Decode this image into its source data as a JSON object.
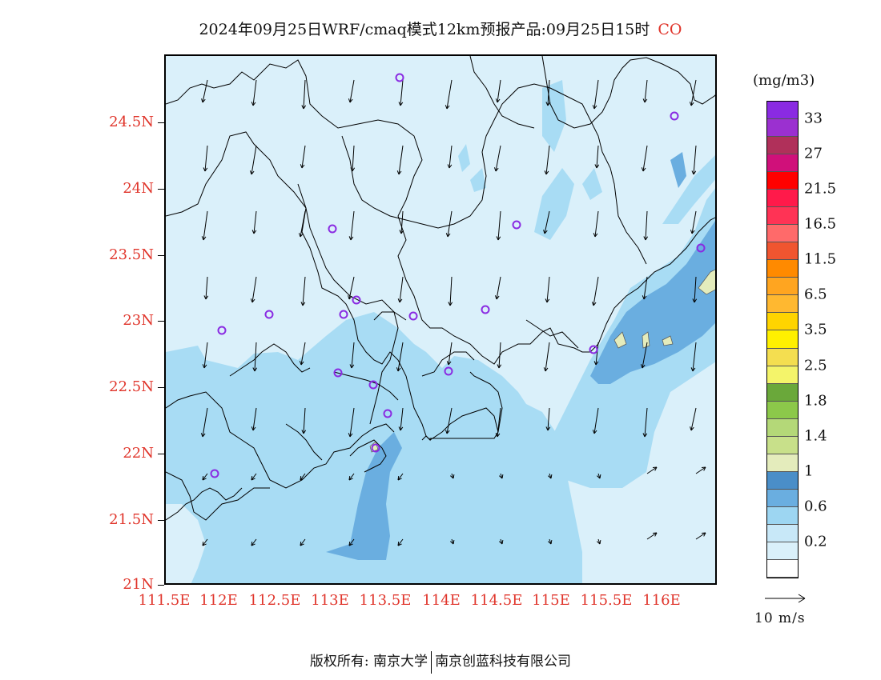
{
  "title": {
    "text": "2024年09月25日WRF/cmaq模式12km预报产品:09月25日15时",
    "species": "CO"
  },
  "map": {
    "y_axis_labels": [
      "24.5N",
      "24N",
      "23.5N",
      "23N",
      "22.5N",
      "22N",
      "21.5N",
      "21N"
    ],
    "x_axis_labels": [
      "111.5E",
      "112E",
      "112.5E",
      "113E",
      "113.5E",
      "114E",
      "114.5E",
      "115E",
      "115.5E",
      "116E"
    ],
    "background_color": "#daf0fa"
  },
  "legend": {
    "unit": "(mg/m3)",
    "labels": [
      "33",
      "27",
      "21.5",
      "16.5",
      "11.5",
      "6.5",
      "3.5",
      "2.5",
      "1.8",
      "1.4",
      "1",
      "0.6",
      "0.2"
    ],
    "colors": [
      "#8a2be2",
      "#9b30d0",
      "#b0305a",
      "#d0107a",
      "#ff0000",
      "#ff1a4a",
      "#ff3355",
      "#ff6a6a",
      "#f05530",
      "#ff8a00",
      "#ffa520",
      "#ffb830",
      "#ffd400",
      "#fff000",
      "#f4de50",
      "#f4f46a",
      "#6aa83a",
      "#8cc84a",
      "#b4d878",
      "#c8e08a",
      "#e4ecbc",
      "#4a8ec8",
      "#6aaee0",
      "#9dd6f2",
      "#c8e8f8",
      "#daf0fa",
      "#ffffff"
    ]
  },
  "reference_vector": {
    "label": "10 m/s"
  },
  "footer": {
    "left": "版权所有: 南京大学",
    "right": "南京创蓝科技有限公司"
  }
}
